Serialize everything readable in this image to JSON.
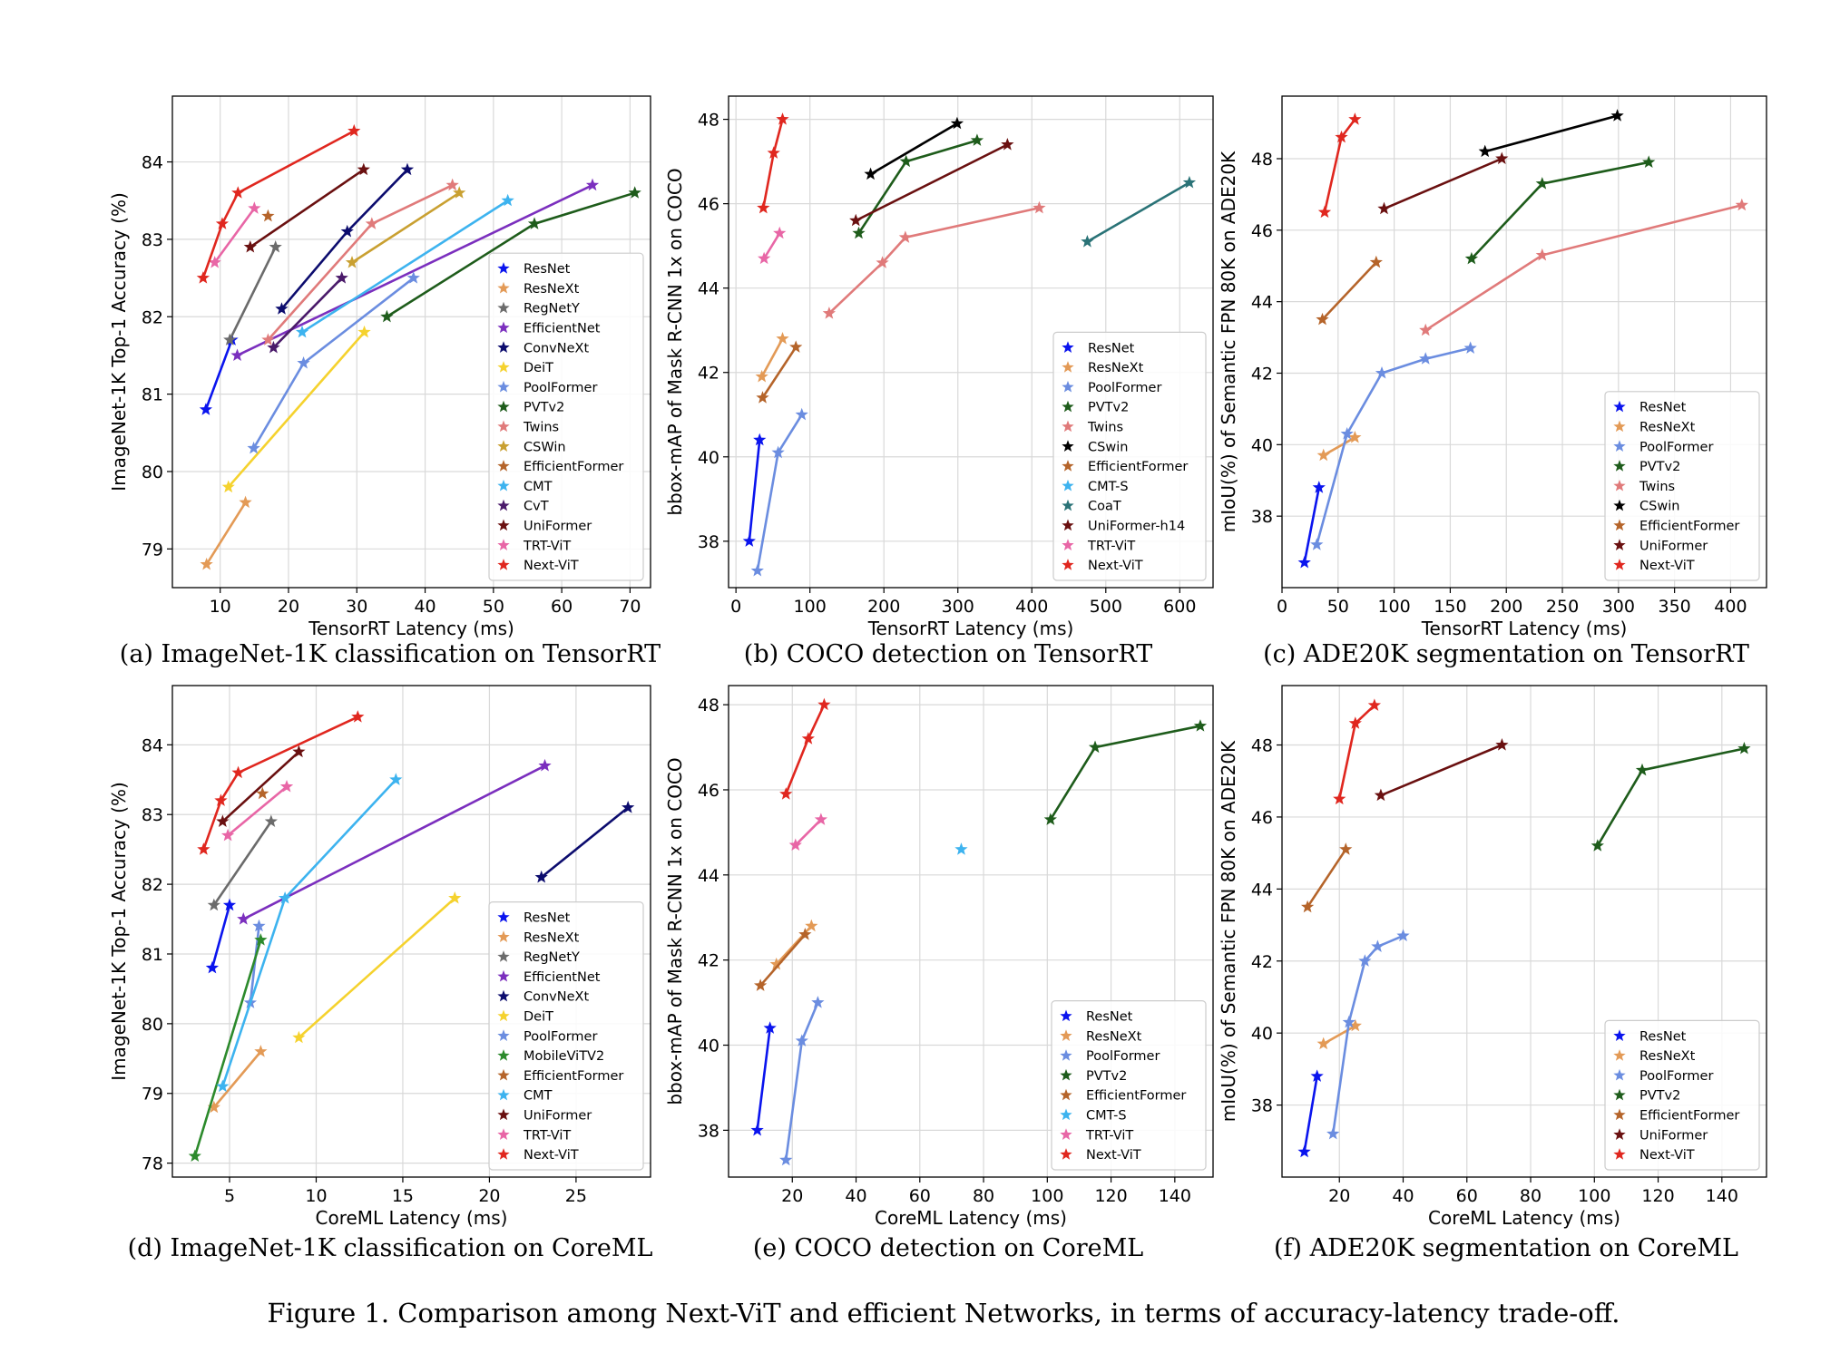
{
  "figure_caption": "Figure 1. Comparison among Next-ViT and efficient Networks, in terms of accuracy-latency trade-off.",
  "colors": {
    "ResNet": "#0a14ee",
    "ResNeXt": "#e39a56",
    "RegNetY": "#6b6b6b",
    "EfficientNet": "#7b2fbe",
    "ConvNeXt": "#0c0c6e",
    "DeiT": "#f5d22e",
    "PoolFormer": "#6b8de0",
    "PVTv2": "#1e5c1b",
    "MobileViTV2": "#2c8a2c",
    "Twins": "#e07a7a",
    "CSWin": "#c9a031",
    "EfficientFormer": "#b5642a",
    "CMT": "#3db3ef",
    "CMT-S": "#3db3ef",
    "CoaT": "#2a7377",
    "CvT": "#4a1a6a",
    "UniFormer": "#6a1010",
    "UniFormer-h14": "#6a1010",
    "TRT-ViT": "#e866a6",
    "Next-ViT": "#e0271f"
  },
  "chart_data": [
    {
      "id": "a",
      "type": "line",
      "caption": "(a) ImageNet-1K classification on TensorRT",
      "xlabel": "TensorRT Latency (ms)",
      "ylabel": "ImageNet-1K Top-1 Accuracy (%)",
      "xlim": [
        3,
        73
      ],
      "ylim": [
        78.5,
        84.85
      ],
      "xticks": [
        10,
        20,
        30,
        40,
        50,
        60,
        70
      ],
      "yticks": [
        79,
        80,
        81,
        82,
        83,
        84
      ],
      "grid": true,
      "legend_position": "lower-right",
      "series": [
        {
          "name": "ResNet",
          "x": [
            7.9,
            11.7
          ],
          "y": [
            80.8,
            81.7
          ]
        },
        {
          "name": "ResNeXt",
          "x": [
            8.0,
            13.7
          ],
          "y": [
            78.8,
            79.6
          ]
        },
        {
          "name": "RegNetY",
          "x": [
            11.4,
            18.1
          ],
          "y": [
            81.7,
            82.9
          ]
        },
        {
          "name": "EfficientNet",
          "x": [
            12.5,
            64.5
          ],
          "y": [
            81.5,
            83.7
          ]
        },
        {
          "name": "ConvNeXt",
          "x": [
            19.0,
            28.6,
            37.4
          ],
          "y": [
            82.1,
            83.1,
            83.9
          ]
        },
        {
          "name": "DeiT",
          "x": [
            11.2,
            31.1
          ],
          "y": [
            79.8,
            81.8
          ]
        },
        {
          "name": "PoolFormer",
          "x": [
            14.9,
            22.2,
            38.3
          ],
          "y": [
            80.3,
            81.4,
            82.5
          ]
        },
        {
          "name": "PVTv2",
          "x": [
            34.4,
            56.0,
            70.7
          ],
          "y": [
            82.0,
            83.2,
            83.6
          ]
        },
        {
          "name": "Twins",
          "x": [
            17.0,
            32.2,
            44.0
          ],
          "y": [
            81.7,
            83.2,
            83.7
          ]
        },
        {
          "name": "CSWin",
          "x": [
            29.3,
            45.0
          ],
          "y": [
            82.7,
            83.6
          ]
        },
        {
          "name": "EfficientFormer",
          "x": [
            17.0
          ],
          "y": [
            83.3
          ]
        },
        {
          "name": "CMT",
          "x": [
            22.0,
            52.1
          ],
          "y": [
            81.8,
            83.5
          ]
        },
        {
          "name": "CvT",
          "x": [
            17.8,
            27.8
          ],
          "y": [
            81.6,
            82.5
          ]
        },
        {
          "name": "UniFormer",
          "x": [
            14.4,
            31.0
          ],
          "y": [
            82.9,
            83.9
          ]
        },
        {
          "name": "TRT-ViT",
          "x": [
            9.2,
            15.0
          ],
          "y": [
            82.7,
            83.4
          ]
        },
        {
          "name": "Next-ViT",
          "x": [
            7.5,
            10.3,
            12.6,
            29.6
          ],
          "y": [
            82.5,
            83.2,
            83.6,
            84.4
          ]
        }
      ],
      "legend": [
        "ResNet",
        "ResNeXt",
        "RegNetY",
        "EfficientNet",
        "ConvNeXt",
        "DeiT",
        "PoolFormer",
        "PVTv2",
        "Twins",
        "CSWin",
        "EfficientFormer",
        "CMT",
        "CvT",
        "UniFormer",
        "TRT-ViT",
        "Next-ViT"
      ]
    },
    {
      "id": "b",
      "type": "line",
      "caption": "(b) COCO detection on TensorRT",
      "xlabel": "TensorRT Latency (ms)",
      "ylabel": "bbox-mAP of Mask R-CNN 1x on COCO",
      "xlim": [
        -10,
        645
      ],
      "ylim": [
        36.9,
        48.55
      ],
      "xticks": [
        0,
        100,
        200,
        300,
        400,
        500,
        600
      ],
      "yticks": [
        38,
        40,
        42,
        44,
        46,
        48
      ],
      "grid": true,
      "legend_position": "lower-right",
      "series": [
        {
          "name": "ResNet",
          "x": [
            18,
            32
          ],
          "y": [
            38.0,
            40.4
          ]
        },
        {
          "name": "ResNeXt",
          "x": [
            35,
            63
          ],
          "y": [
            41.9,
            42.8
          ]
        },
        {
          "name": "PoolFormer",
          "x": [
            29,
            57,
            89
          ],
          "y": [
            37.3,
            40.1,
            41.0
          ]
        },
        {
          "name": "PVTv2",
          "x": [
            166,
            230,
            326
          ],
          "y": [
            45.3,
            47.0,
            47.5
          ]
        },
        {
          "name": "Twins",
          "x": [
            126,
            198,
            229,
            410
          ],
          "y": [
            43.4,
            44.6,
            45.2,
            45.9
          ]
        },
        {
          "name": "CSwin",
          "x": [
            182,
            299
          ],
          "y": [
            46.7,
            47.9
          ]
        },
        {
          "name": "EfficientFormer",
          "x": [
            36,
            81
          ],
          "y": [
            41.4,
            42.6
          ]
        },
        {
          "name": "CMT-S",
          "x": [],
          "y": []
        },
        {
          "name": "CoaT",
          "x": [
            475,
            613
          ],
          "y": [
            45.1,
            46.5
          ]
        },
        {
          "name": "UniFormer-h14",
          "x": [
            162,
            367
          ],
          "y": [
            45.6,
            47.4
          ]
        },
        {
          "name": "TRT-ViT",
          "x": [
            38,
            59
          ],
          "y": [
            44.7,
            45.3
          ]
        },
        {
          "name": "Next-ViT",
          "x": [
            37,
            51,
            63
          ],
          "y": [
            45.9,
            47.2,
            48.0
          ]
        }
      ],
      "legend": [
        "ResNet",
        "ResNeXt",
        "PoolFormer",
        "PVTv2",
        "Twins",
        "CSwin",
        "EfficientFormer",
        "CMT-S",
        "CoaT",
        "UniFormer-h14",
        "TRT-ViT",
        "Next-ViT"
      ]
    },
    {
      "id": "c",
      "type": "line",
      "caption": "(c) ADE20K segmentation on TensorRT",
      "xlabel": "TensorRT Latency (ms)",
      "ylabel": "mIoU(%) of Semantic FPN 80K on ADE20K",
      "xlim": [
        0,
        432
      ],
      "ylim": [
        36.0,
        49.75
      ],
      "xticks": [
        0,
        50,
        100,
        150,
        200,
        250,
        300,
        350,
        400
      ],
      "yticks": [
        38,
        40,
        42,
        44,
        46,
        48
      ],
      "grid": true,
      "legend_position": "lower-right",
      "series": [
        {
          "name": "ResNet",
          "x": [
            20,
            33
          ],
          "y": [
            36.7,
            38.8
          ]
        },
        {
          "name": "ResNeXt",
          "x": [
            37,
            65
          ],
          "y": [
            39.7,
            40.2
          ]
        },
        {
          "name": "PoolFormer",
          "x": [
            31,
            58,
            89,
            128,
            168
          ],
          "y": [
            37.2,
            40.3,
            42.0,
            42.4,
            42.7
          ]
        },
        {
          "name": "PVTv2",
          "x": [
            169,
            232,
            327
          ],
          "y": [
            45.2,
            47.3,
            47.9
          ]
        },
        {
          "name": "Twins",
          "x": [
            128,
            232,
            410
          ],
          "y": [
            43.2,
            45.3,
            46.7
          ]
        },
        {
          "name": "CSwin",
          "x": [
            181,
            299
          ],
          "y": [
            48.2,
            49.2
          ]
        },
        {
          "name": "EfficientFormer",
          "x": [
            36,
            84
          ],
          "y": [
            43.5,
            45.1
          ]
        },
        {
          "name": "UniFormer",
          "x": [
            91,
            196
          ],
          "y": [
            46.6,
            48.0
          ]
        },
        {
          "name": "Next-ViT",
          "x": [
            38,
            53,
            65
          ],
          "y": [
            46.5,
            48.6,
            49.1
          ]
        }
      ],
      "legend": [
        "ResNet",
        "ResNeXt",
        "PoolFormer",
        "PVTv2",
        "Twins",
        "CSwin",
        "EfficientFormer",
        "UniFormer",
        "Next-ViT"
      ]
    },
    {
      "id": "d",
      "type": "line",
      "caption": "(d) ImageNet-1K classification on CoreML",
      "xlabel": "CoreML Latency (ms)",
      "ylabel": "ImageNet-1K Top-1 Accuracy (%)",
      "xlim": [
        1.7,
        29.3
      ],
      "ylim": [
        77.8,
        84.85
      ],
      "xticks": [
        5,
        10,
        15,
        20,
        25
      ],
      "yticks": [
        78,
        79,
        80,
        81,
        82,
        83,
        84
      ],
      "grid": true,
      "legend_position": "lower-right",
      "series": [
        {
          "name": "ResNet",
          "x": [
            4.0,
            5.0
          ],
          "y": [
            80.8,
            81.7
          ]
        },
        {
          "name": "ResNeXt",
          "x": [
            4.1,
            6.8
          ],
          "y": [
            78.8,
            79.6
          ]
        },
        {
          "name": "RegNetY",
          "x": [
            4.1,
            7.4
          ],
          "y": [
            81.7,
            82.9
          ]
        },
        {
          "name": "EfficientNet",
          "x": [
            5.8,
            23.2
          ],
          "y": [
            81.5,
            83.7
          ]
        },
        {
          "name": "ConvNeXt",
          "x": [
            23.0,
            28.0
          ],
          "y": [
            82.1,
            83.1
          ]
        },
        {
          "name": "DeiT",
          "x": [
            9.0,
            18.0
          ],
          "y": [
            79.8,
            81.8
          ]
        },
        {
          "name": "PoolFormer",
          "x": [
            6.2,
            6.7
          ],
          "y": [
            80.3,
            81.4
          ]
        },
        {
          "name": "MobileViTV2",
          "x": [
            3.0,
            6.8
          ],
          "y": [
            78.1,
            81.2
          ]
        },
        {
          "name": "EfficientFormer",
          "x": [
            6.9
          ],
          "y": [
            83.3
          ]
        },
        {
          "name": "CMT",
          "x": [
            4.6,
            8.2,
            14.6
          ],
          "y": [
            79.1,
            81.8,
            83.5
          ]
        },
        {
          "name": "UniFormer",
          "x": [
            4.6,
            9.0
          ],
          "y": [
            82.9,
            83.9
          ]
        },
        {
          "name": "TRT-ViT",
          "x": [
            4.9,
            8.3
          ],
          "y": [
            82.7,
            83.4
          ]
        },
        {
          "name": "Next-ViT",
          "x": [
            3.5,
            4.5,
            5.5,
            12.4
          ],
          "y": [
            82.5,
            83.2,
            83.6,
            84.4
          ]
        }
      ],
      "legend": [
        "ResNet",
        "ResNeXt",
        "RegNetY",
        "EfficientNet",
        "ConvNeXt",
        "DeiT",
        "PoolFormer",
        "MobileViTV2",
        "EfficientFormer",
        "CMT",
        "UniFormer",
        "TRT-ViT",
        "Next-ViT"
      ]
    },
    {
      "id": "e",
      "type": "line",
      "caption": "(e) COCO detection on CoreML",
      "xlabel": "CoreML Latency (ms)",
      "ylabel": "bbox-mAP of Mask R-CNN 1x on COCO",
      "xlim": [
        0,
        152
      ],
      "ylim": [
        36.9,
        48.45
      ],
      "xticks": [
        20,
        40,
        60,
        80,
        100,
        120,
        140
      ],
      "yticks": [
        38,
        40,
        42,
        44,
        46,
        48
      ],
      "grid": true,
      "legend_position": "lower-right",
      "series": [
        {
          "name": "ResNet",
          "x": [
            9,
            13
          ],
          "y": [
            38.0,
            40.4
          ]
        },
        {
          "name": "ResNeXt",
          "x": [
            15,
            26
          ],
          "y": [
            41.9,
            42.8
          ]
        },
        {
          "name": "PoolFormer",
          "x": [
            18,
            23,
            28
          ],
          "y": [
            37.3,
            40.1,
            41.0
          ]
        },
        {
          "name": "PVTv2",
          "x": [
            101,
            115,
            148
          ],
          "y": [
            45.3,
            47.0,
            47.5
          ]
        },
        {
          "name": "EfficientFormer",
          "x": [
            10,
            24
          ],
          "y": [
            41.4,
            42.6
          ]
        },
        {
          "name": "CMT-S",
          "x": [
            73
          ],
          "y": [
            44.6
          ]
        },
        {
          "name": "TRT-ViT",
          "x": [
            21,
            29
          ],
          "y": [
            44.7,
            45.3
          ]
        },
        {
          "name": "Next-ViT",
          "x": [
            18,
            25,
            30
          ],
          "y": [
            45.9,
            47.2,
            48.0
          ]
        }
      ],
      "legend": [
        "ResNet",
        "ResNeXt",
        "PoolFormer",
        "PVTv2",
        "EfficientFormer",
        "CMT-S",
        "TRT-ViT",
        "Next-ViT"
      ]
    },
    {
      "id": "f",
      "type": "line",
      "caption": "(f) ADE20K segmentation on CoreML",
      "xlabel": "CoreML Latency (ms)",
      "ylabel": "mIoU(%) of Semantic FPN 80K on ADE20K",
      "xlim": [
        2,
        154
      ],
      "ylim": [
        36.0,
        49.65
      ],
      "xticks": [
        20,
        40,
        60,
        80,
        100,
        120,
        140
      ],
      "yticks": [
        38,
        40,
        42,
        44,
        46,
        48
      ],
      "grid": true,
      "legend_position": "lower-right",
      "series": [
        {
          "name": "ResNet",
          "x": [
            9,
            13
          ],
          "y": [
            36.7,
            38.8
          ]
        },
        {
          "name": "ResNeXt",
          "x": [
            15,
            25
          ],
          "y": [
            39.7,
            40.2
          ]
        },
        {
          "name": "PoolFormer",
          "x": [
            18,
            23,
            28,
            32,
            40
          ],
          "y": [
            37.2,
            40.3,
            42.0,
            42.4,
            42.7
          ]
        },
        {
          "name": "PVTv2",
          "x": [
            101,
            115,
            147
          ],
          "y": [
            45.2,
            47.3,
            47.9
          ]
        },
        {
          "name": "EfficientFormer",
          "x": [
            10,
            22
          ],
          "y": [
            43.5,
            45.1
          ]
        },
        {
          "name": "UniFormer",
          "x": [
            33,
            71
          ],
          "y": [
            46.6,
            48.0
          ]
        },
        {
          "name": "Next-ViT",
          "x": [
            20,
            25,
            31
          ],
          "y": [
            46.5,
            48.6,
            49.1
          ]
        }
      ],
      "legend": [
        "ResNet",
        "ResNeXt",
        "PoolFormer",
        "PVTv2",
        "EfficientFormer",
        "UniFormer",
        "Next-ViT"
      ]
    }
  ]
}
